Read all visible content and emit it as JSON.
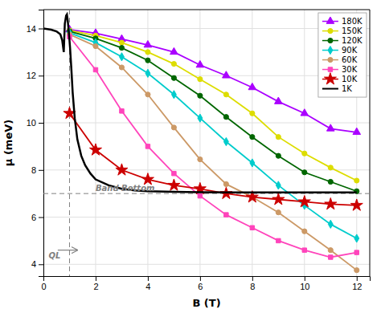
{
  "chart_data": {
    "type": "line",
    "xlabel": "B (T)",
    "ylabel": "μ (meV)",
    "xlim": [
      0,
      12.5
    ],
    "ylim": [
      3.5,
      14.8
    ],
    "xticks": [
      0,
      2,
      4,
      6,
      8,
      10,
      12
    ],
    "yticks": [
      4,
      6,
      8,
      10,
      12,
      14
    ],
    "grid": true,
    "legend": "upper right",
    "series": [
      {
        "name": "180K",
        "color": "#aa00ff",
        "marker": "triangle",
        "line_style": "solid",
        "x": [
          1,
          2,
          3,
          4,
          5,
          6,
          7,
          8,
          9,
          10,
          11,
          12
        ],
        "values": [
          13.95,
          13.8,
          13.55,
          13.3,
          13.0,
          12.45,
          12.0,
          11.5,
          10.9,
          10.4,
          9.75,
          9.6
        ]
      },
      {
        "name": "150K",
        "color": "#dddd00",
        "marker": "circle",
        "line_style": "solid",
        "x": [
          1,
          2,
          3,
          4,
          5,
          6,
          7,
          8,
          9,
          10,
          11,
          12
        ],
        "values": [
          13.92,
          13.7,
          13.4,
          13.0,
          12.5,
          11.85,
          11.2,
          10.4,
          9.4,
          8.7,
          8.1,
          7.55
        ]
      },
      {
        "name": "120K",
        "color": "#006600",
        "marker": "circle",
        "line_style": "solid",
        "x": [
          1,
          2,
          3,
          4,
          5,
          6,
          7,
          8,
          9,
          10,
          11,
          12
        ],
        "values": [
          13.88,
          13.58,
          13.18,
          12.65,
          11.9,
          11.15,
          10.25,
          9.4,
          8.6,
          7.9,
          7.5,
          7.1
        ]
      },
      {
        "name": "90K",
        "color": "#00cccc",
        "marker": "diamond",
        "line_style": "solid",
        "x": [
          1,
          2,
          3,
          4,
          5,
          6,
          7,
          8,
          9,
          10,
          11,
          12
        ],
        "values": [
          13.82,
          13.4,
          12.8,
          12.1,
          11.2,
          10.2,
          9.2,
          8.3,
          7.35,
          6.5,
          5.7,
          5.1
        ]
      },
      {
        "name": "60K",
        "color": "#cc9966",
        "marker": "circle",
        "line_style": "solid",
        "x": [
          1,
          2,
          3,
          4,
          5,
          6,
          7,
          8,
          9,
          10,
          11,
          12
        ],
        "values": [
          13.75,
          13.25,
          12.35,
          11.2,
          9.8,
          8.45,
          7.4,
          6.85,
          6.2,
          5.4,
          4.6,
          3.75
        ]
      },
      {
        "name": "30K",
        "color": "#ff44bb",
        "marker": "square",
        "line_style": "solid",
        "x": [
          1,
          2,
          3,
          4,
          5,
          6,
          7,
          8,
          9,
          10,
          11,
          12
        ],
        "values": [
          13.65,
          12.25,
          10.5,
          9.0,
          7.85,
          6.9,
          6.1,
          5.55,
          5.0,
          4.6,
          4.3,
          4.5
        ]
      },
      {
        "name": "10K",
        "color": "#cc0000",
        "marker": "star",
        "line_style": "solid",
        "x": [
          1,
          2,
          3,
          4,
          5,
          6,
          7,
          8,
          9,
          10,
          11,
          12
        ],
        "values": [
          10.4,
          8.85,
          8.0,
          7.6,
          7.35,
          7.2,
          7.0,
          6.85,
          6.75,
          6.65,
          6.55,
          6.5
        ]
      },
      {
        "name": "1K",
        "color": "#000000",
        "marker": "none",
        "line_style": "solid",
        "x": [
          0.0,
          0.3,
          0.5,
          0.65,
          0.72,
          0.78,
          0.82,
          0.87,
          0.9,
          0.93,
          0.97,
          1.02,
          1.07,
          1.12,
          1.2,
          1.3,
          1.45,
          1.6,
          1.8,
          2.0,
          2.5,
          3.0,
          3.5,
          4.0,
          5.0,
          6.0,
          7.0,
          8.0,
          9.0,
          10.0,
          11.0,
          12.0
        ],
        "values": [
          14.0,
          13.95,
          13.88,
          13.75,
          13.5,
          13.0,
          14.2,
          14.55,
          14.6,
          14.35,
          13.9,
          13.2,
          12.3,
          11.3,
          10.2,
          9.3,
          8.6,
          8.2,
          7.85,
          7.6,
          7.35,
          7.2,
          7.13,
          7.1,
          7.07,
          7.06,
          7.05,
          7.05,
          7.05,
          7.05,
          7.05,
          7.05
        ]
      }
    ],
    "reference_lines": [
      {
        "y": 7.0
      },
      {
        "x": 1.0
      }
    ],
    "annotations": [
      {
        "text": "Band Bottom",
        "x": 2.0,
        "y": 7.12
      },
      {
        "text": "QL",
        "x": 0.2,
        "y": 4.25,
        "arrow_from": [
          0.55,
          4.6
        ],
        "arrow_to": [
          1.3,
          4.6
        ]
      }
    ]
  }
}
